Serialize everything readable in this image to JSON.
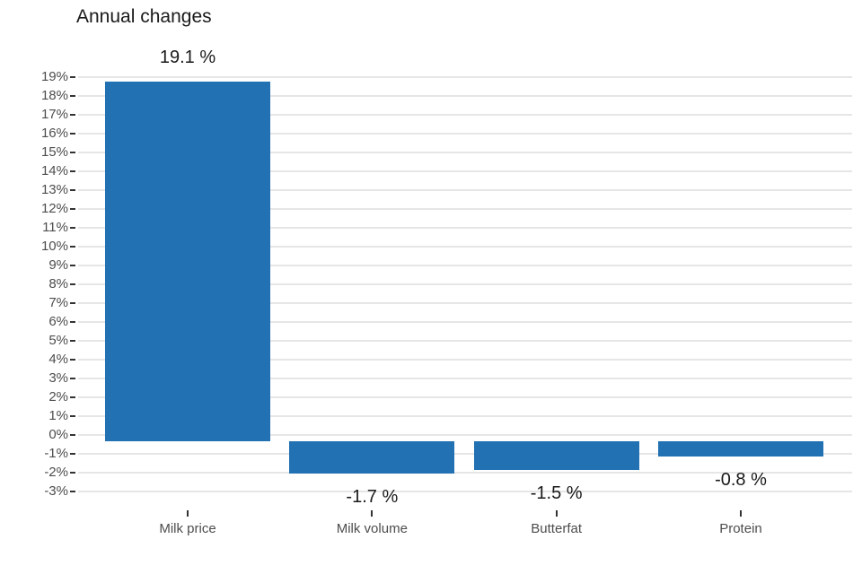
{
  "chart_data": {
    "type": "bar",
    "title": "Annual changes",
    "categories": [
      "Milk price",
      "Milk volume",
      "Butterfat",
      "Protein"
    ],
    "values": [
      19.1,
      -1.7,
      -1.5,
      -0.8
    ],
    "value_labels": [
      "19.1 %",
      "-1.7 %",
      "-1.5 %",
      "-0.8 %"
    ],
    "xlabel": "",
    "ylabel": "",
    "ylim": [
      -3,
      19
    ],
    "y_tick_values": [
      19,
      18,
      17,
      16,
      15,
      14,
      13,
      12,
      11,
      10,
      9,
      8,
      7,
      6,
      5,
      4,
      3,
      2,
      1,
      0,
      -1,
      -2,
      -3
    ],
    "y_tick_labels": [
      "19%",
      "18%",
      "17%",
      "16%",
      "15%",
      "14%",
      "13%",
      "12%",
      "11%",
      "10%",
      "9%",
      "8%",
      "7%",
      "6%",
      "5%",
      "4%",
      "3%",
      "2%",
      "1%",
      "0%",
      "-1%",
      "-2%",
      "-3%"
    ],
    "grid": "horizontal-major-only",
    "legend": "none",
    "colors": {
      "bar": "#2171b3",
      "gridline": "#e6e6e6",
      "tick": "#333333",
      "axis_text": "#4d4d4d",
      "title_text": "#1a1a1a",
      "label_text": "#1a1a1a",
      "background": "#ffffff"
    }
  }
}
